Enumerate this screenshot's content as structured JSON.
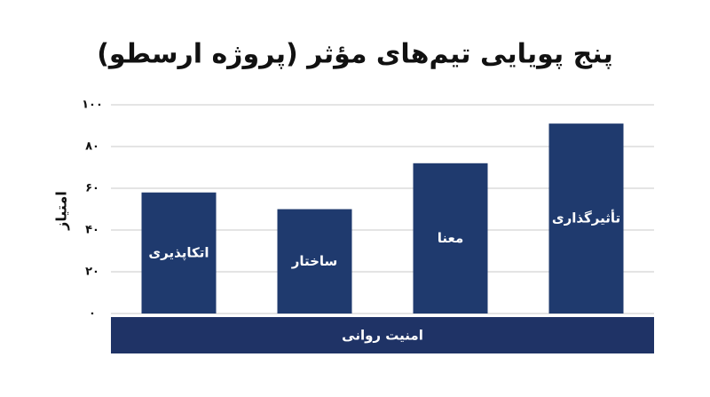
{
  "chart_data": {
    "type": "bar",
    "title": "پنج پویایی تیم‌های مؤثر (پروژه ارسطو)",
    "y_label": "امتیاز",
    "categories": [
      "اتکاپذیری",
      "ساختار",
      "معنا",
      "تأثیرگذاری"
    ],
    "values": [
      58,
      50,
      72,
      91
    ],
    "color": "#1f3a6e",
    "base_label": "امنیت روانی",
    "base_color": "#1f3366",
    "ylim": [
      0,
      100
    ],
    "yticks": [
      {
        "value": 0,
        "label": "۰"
      },
      {
        "value": 20,
        "label": "۲۰"
      },
      {
        "value": 40,
        "label": "۴۰"
      },
      {
        "value": 60,
        "label": "۶۰"
      },
      {
        "value": 80,
        "label": "۸۰"
      },
      {
        "value": 100,
        "label": "۱۰۰"
      }
    ],
    "grid": true
  }
}
